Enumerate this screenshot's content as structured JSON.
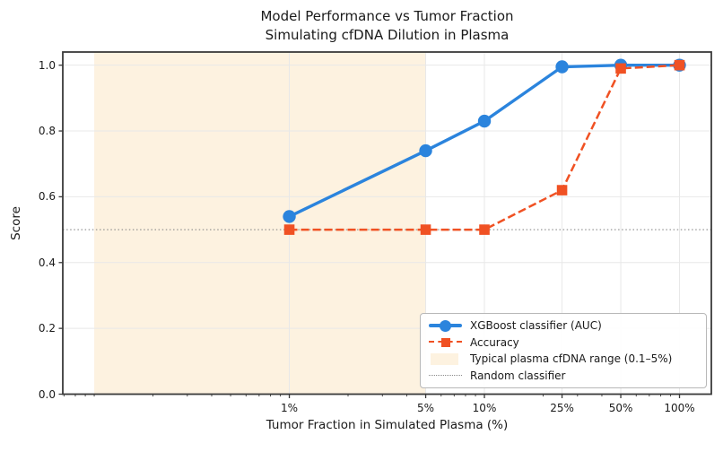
{
  "chart_data": {
    "type": "line",
    "title": "Model Performance vs Tumor Fraction",
    "subtitle": "Simulating cfDNA Dilution in Plasma",
    "xlabel": "Tumor Fraction in Simulated Plasma (%)",
    "ylabel": "Score",
    "xscale": "log",
    "x": [
      1,
      5,
      10,
      25,
      50,
      100
    ],
    "xticklabels": [
      "1%",
      "5%",
      "10%",
      "25%",
      "50%",
      "100%"
    ],
    "yticks": [
      0.0,
      0.2,
      0.4,
      0.6,
      0.8,
      1.0
    ],
    "xlim": [
      0.069,
      145.6
    ],
    "ylim": [
      0.0,
      1.04
    ],
    "grid": true,
    "legend_position": "lower right",
    "series": [
      {
        "name": "XGBoost classifier (AUC)",
        "marker": "circle",
        "linestyle": "solid",
        "color": "#2b84dd",
        "values": [
          0.54,
          0.74,
          0.83,
          0.995,
          1.0,
          1.0
        ]
      },
      {
        "name": "Accuracy",
        "marker": "square",
        "linestyle": "dashed",
        "color": "#f05123",
        "values": [
          0.5,
          0.5,
          0.5,
          0.62,
          0.99,
          1.0
        ]
      }
    ],
    "band": {
      "label": "Typical plasma cfDNA range (0.1–5%)",
      "x_from": 0.1,
      "x_to": 5,
      "color": "#fdf2e0"
    },
    "reference_line": {
      "label": "Random classifier",
      "y": 0.5,
      "color": "#8a8a8a",
      "linestyle": "dotted"
    }
  }
}
